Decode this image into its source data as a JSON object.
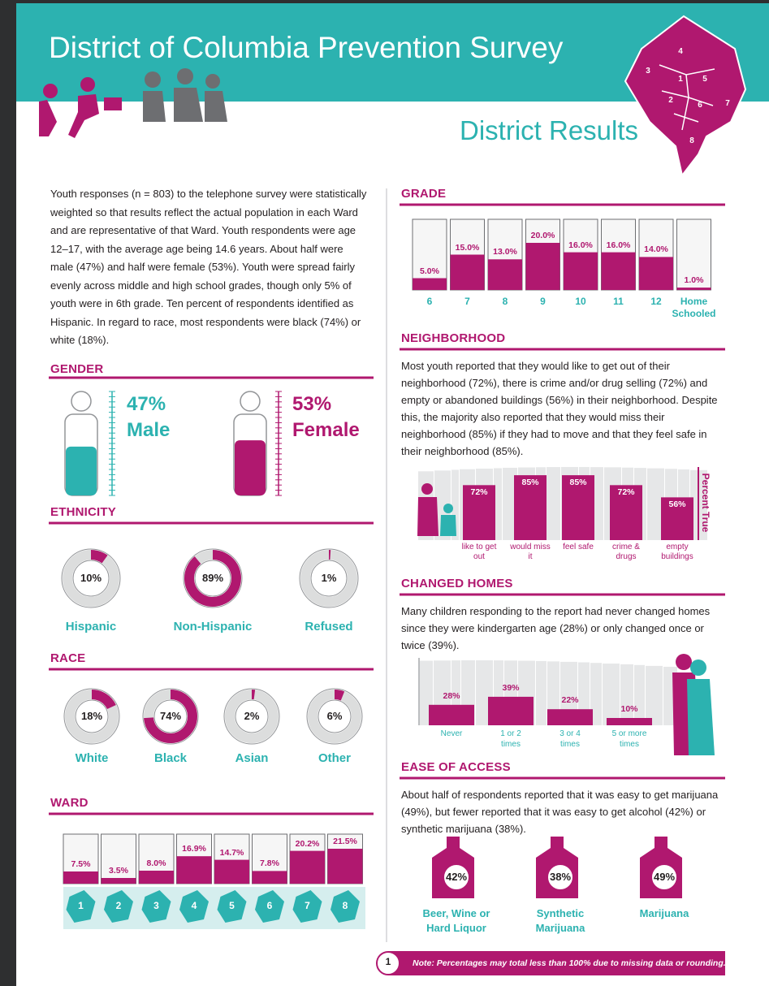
{
  "header": {
    "title": "District of Columbia Prevention Survey",
    "subtitle": "District Results",
    "map_wards": [
      "1",
      "2",
      "3",
      "4",
      "5",
      "6",
      "7",
      "8"
    ]
  },
  "intro": "Youth responses (n = 803) to the telephone survey were statistically weighted so that results reflect the actual population in each Ward and are representative of that Ward. Youth respondents were age 12–17, with the average age being 14.6 years. About half were male (47%) and half were female (53%). Youth were spread fairly evenly across middle and high school grades, though only 5% of youth were in 6th grade. Ten percent of respondents identified as Hispanic. In regard to race, most respondents were black (74%) or white (18%).",
  "gender": {
    "title": "GENDER",
    "categories": [
      "Male",
      "Female"
    ],
    "values": [
      47,
      53
    ],
    "value_labels": [
      "47%",
      "53%"
    ]
  },
  "ethnicity": {
    "title": "ETHNICITY",
    "categories": [
      "Hispanic",
      "Non-Hispanic",
      "Refused"
    ],
    "values": [
      10,
      89,
      1
    ],
    "value_labels": [
      "10%",
      "89%",
      "1%"
    ]
  },
  "race": {
    "title": "RACE",
    "categories": [
      "White",
      "Black",
      "Asian",
      "Other"
    ],
    "values": [
      18,
      74,
      2,
      6
    ],
    "value_labels": [
      "18%",
      "74%",
      "2%",
      "6%"
    ]
  },
  "ward": {
    "title": "WARD",
    "categories": [
      "1",
      "2",
      "3",
      "4",
      "5",
      "6",
      "7",
      "8"
    ],
    "values": [
      7.5,
      3.5,
      8.0,
      16.9,
      14.7,
      7.8,
      20.2,
      21.5
    ],
    "value_labels": [
      "7.5%",
      "3.5%",
      "8.0%",
      "16.9%",
      "14.7%",
      "7.8%",
      "20.2%",
      "21.5%"
    ]
  },
  "grade": {
    "title": "GRADE",
    "categories": [
      "6",
      "7",
      "8",
      "9",
      "10",
      "11",
      "12",
      "Home Schooled"
    ],
    "values": [
      5.0,
      15.0,
      13.0,
      20.0,
      16.0,
      16.0,
      14.0,
      1.0
    ],
    "value_labels": [
      "5.0%",
      "15.0%",
      "13.0%",
      "20.0%",
      "16.0%",
      "16.0%",
      "14.0%",
      "1.0%"
    ]
  },
  "neighborhood": {
    "title": "NEIGHBORHOOD",
    "text": "Most youth reported that they would like to get out of their neighborhood (72%), there is crime and/or drug selling (72%) and empty or abandoned buildings (56%) in their neighborhood. Despite this, the majority also reported that they would miss their neighborhood (85%) if they had to move and that they feel safe in their neighborhood (85%).",
    "axis_label": "Percent True",
    "categories": [
      "like to get out",
      "would miss it",
      "feel safe",
      "crime & drugs",
      "empty buildings"
    ],
    "values": [
      72,
      85,
      85,
      72,
      56
    ],
    "value_labels": [
      "72%",
      "85%",
      "85%",
      "72%",
      "56%"
    ]
  },
  "changed_homes": {
    "title": "CHANGED HOMES",
    "text": "Many children responding to the report had never changed homes since they were kindergarten age (28%) or only changed once or twice (39%).",
    "categories": [
      "Never",
      "1 or 2 times",
      "3 or 4 times",
      "5 or more times"
    ],
    "values": [
      28,
      39,
      22,
      10
    ],
    "value_labels": [
      "28%",
      "39%",
      "22%",
      "10%"
    ]
  },
  "ease_of_access": {
    "title": "EASE OF ACCESS",
    "text": "About half of respondents reported that it was easy to get marijuana (49%), but fewer reported that it was easy to get alcohol (42%) or synthetic marijuana (38%).",
    "categories": [
      "Beer, Wine or Hard Liquor",
      "Synthetic Marijuana",
      "Marijuana"
    ],
    "values": [
      42,
      38,
      49
    ],
    "value_labels": [
      "42%",
      "38%",
      "49%"
    ]
  },
  "footer": {
    "page": "1",
    "note": "Note: Percentages may total less than 100% due to missing data or rounding."
  }
}
